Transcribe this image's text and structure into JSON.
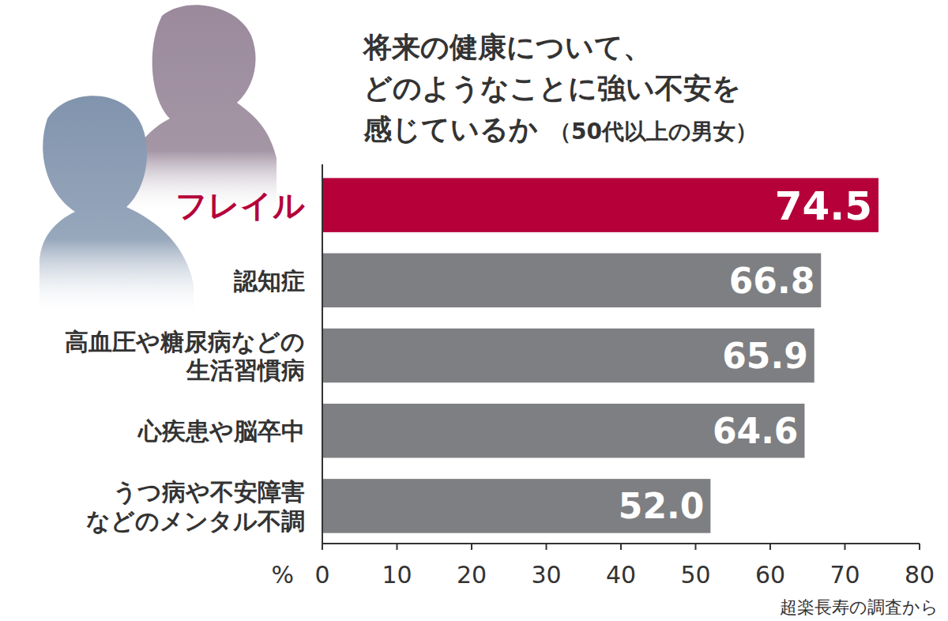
{
  "chart_data": {
    "type": "bar",
    "orientation": "horizontal",
    "title": "将来の健康について、どのようなことに強い不安を感じているか",
    "subtitle": "（50代以上の男女）",
    "categories": [
      "フレイル",
      "認知症",
      "高血圧や糖尿病などの生活習慣病",
      "心疾患や脳卒中",
      "うつ病や不安障害などのメンタル不調"
    ],
    "values": [
      74.5,
      66.8,
      65.9,
      64.6,
      52.0
    ],
    "value_labels": [
      "74.5",
      "66.8",
      "65.9",
      "64.6",
      "52.0"
    ],
    "colors": [
      "#b5003a",
      "#7e7f82",
      "#7e7f82",
      "#7e7f82",
      "#7e7f82"
    ],
    "xlim": [
      0,
      80
    ],
    "xticks": [
      0,
      10,
      20,
      30,
      40,
      50,
      60,
      70,
      80
    ],
    "xlabel": "%",
    "source": "超楽長寿の調査から",
    "data_labels": true,
    "grid": false
  }
}
